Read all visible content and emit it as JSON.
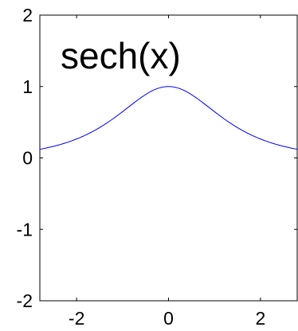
{
  "chart_data": {
    "type": "line",
    "title": "",
    "xlabel": "",
    "ylabel": "",
    "xlim": [
      -2.8,
      2.8
    ],
    "ylim": [
      -2,
      2
    ],
    "x_ticks": [
      -2,
      0,
      2
    ],
    "y_ticks": [
      2,
      1,
      0,
      -1,
      -2
    ],
    "x_tick_labels": [
      "-2",
      "0",
      "2"
    ],
    "y_tick_labels": [
      "2",
      "1",
      "0",
      "-1",
      "-2"
    ],
    "annotation": "sech(x)",
    "grid": false,
    "legend": "none",
    "series": [
      {
        "color": "#0000ff",
        "function": "sech",
        "x": [
          -2.8,
          -2.5,
          -2.2,
          -2.0,
          -1.8,
          -1.6,
          -1.4,
          -1.2,
          -1.0,
          -0.8,
          -0.6,
          -0.4,
          -0.2,
          0.0,
          0.2,
          0.4,
          0.6,
          0.8,
          1.0,
          1.2,
          1.4,
          1.6,
          1.8,
          2.0,
          2.2,
          2.5,
          2.8
        ],
        "y": [
          0.12,
          0.16,
          0.22,
          0.27,
          0.32,
          0.39,
          0.46,
          0.55,
          0.65,
          0.75,
          0.84,
          0.93,
          0.98,
          1.0,
          0.98,
          0.93,
          0.84,
          0.75,
          0.65,
          0.55,
          0.46,
          0.39,
          0.32,
          0.27,
          0.22,
          0.16,
          0.12
        ]
      }
    ]
  }
}
